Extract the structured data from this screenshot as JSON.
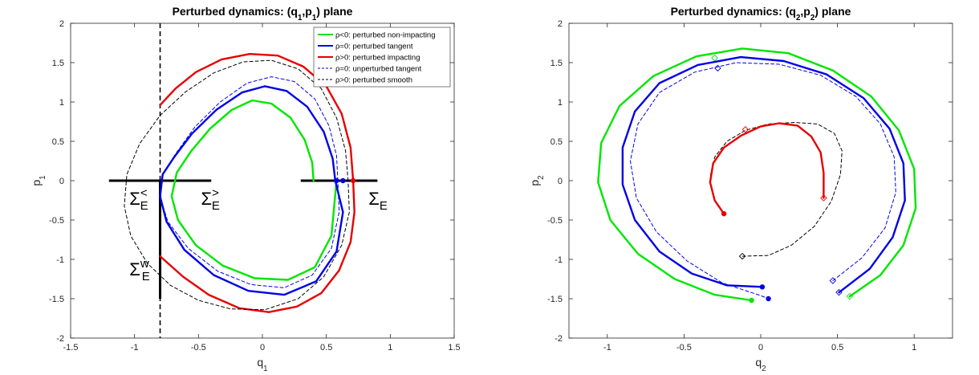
{
  "chart_data": [
    {
      "type": "line",
      "title": "Perturbed dynamics: (q",
      "title_sub1": "1",
      "title_mid": ",p",
      "title_sub2": "1",
      "title_end": ") plane",
      "xlabel": "q",
      "xlabel_sub": "1",
      "ylabel": "p",
      "ylabel_sub": "1",
      "xlim": [
        -1.5,
        1.5
      ],
      "ylim": [
        -2,
        2
      ],
      "xticks": [
        -1.5,
        -1,
        -0.5,
        0,
        0.5,
        1,
        1.5
      ],
      "xtick_labels": [
        "-1.5",
        "-1",
        "-0.5",
        "0",
        "0.5",
        "1",
        "1.5"
      ],
      "yticks": [
        -2,
        -1.5,
        -1,
        -0.5,
        0,
        0.5,
        1,
        1.5,
        2
      ],
      "ytick_labels": [
        "-2",
        "-1.5",
        "-1",
        "-0.5",
        "0",
        "0.5",
        "1",
        "1.5",
        "2"
      ],
      "grid": false,
      "legend_position": "top-right",
      "legend": [
        {
          "label": "ρ<0: perturbed non-impacting",
          "color": "#00e600",
          "style": "solid"
        },
        {
          "label": "ρ=0: perturbed tangent",
          "color": "#0000e6",
          "style": "solid"
        },
        {
          "label": "ρ>0: perturbed impacting",
          "color": "#e60000",
          "style": "solid"
        },
        {
          "label": "ρ=0: unperturbed tangent",
          "color": "#0000e6",
          "style": "dashed"
        },
        {
          "label": "ρ>0: perturbed smooth",
          "color": "#000000",
          "style": "dashed"
        }
      ],
      "annotations": [
        {
          "base": "Σ",
          "sub": "E",
          "sup": "<",
          "x": -1.04,
          "y": -0.12
        },
        {
          "base": "Σ",
          "sub": "E",
          "sup": ">",
          "x": -0.48,
          "y": -0.12
        },
        {
          "base": "Σ",
          "sub": "E",
          "sup": "",
          "x": 0.83,
          "y": -0.12
        },
        {
          "base": "Σ",
          "sub": "E",
          "sup": "w",
          "x": -1.04,
          "y": -1.02
        }
      ],
      "boundaries": {
        "vertical_dashed_q": -0.8,
        "section_left": [
          -1.2,
          -0.4
        ],
        "section_right": [
          0.3,
          0.9
        ],
        "wall_segment": [
          0,
          -1.5
        ]
      },
      "series": [
        {
          "name": "ρ<0: perturbed non-impacting",
          "color": "#00e600",
          "style": "solid",
          "x": [
            0.4,
            0.39,
            0.33,
            0.22,
            0.07,
            -0.08,
            -0.24,
            -0.41,
            -0.56,
            -0.67,
            -0.71,
            -0.66,
            -0.52,
            -0.31,
            -0.06,
            0.2,
            0.41,
            0.54,
            0.58
          ],
          "y": [
            0,
            0.23,
            0.52,
            0.8,
            0.98,
            1.02,
            0.9,
            0.66,
            0.37,
            0.1,
            -0.2,
            -0.5,
            -0.82,
            -1.08,
            -1.24,
            -1.26,
            -1.1,
            -0.7,
            0
          ]
        },
        {
          "name": "ρ=0: perturbed tangent",
          "color": "#0000e6",
          "style": "solid",
          "x": [
            0.57,
            0.55,
            0.48,
            0.35,
            0.19,
            0.02,
            -0.16,
            -0.36,
            -0.55,
            -0.69,
            -0.78,
            -0.8,
            -0.75,
            -0.61,
            -0.38,
            -0.11,
            0.17,
            0.42,
            0.58,
            0.63,
            0.57
          ],
          "y": [
            0,
            0.28,
            0.62,
            0.94,
            1.14,
            1.2,
            1.12,
            0.9,
            0.6,
            0.3,
            0.08,
            -0.2,
            -0.52,
            -0.88,
            -1.2,
            -1.4,
            -1.45,
            -1.28,
            -0.9,
            -0.4,
            0
          ]
        },
        {
          "name": "ρ>0: perturbed impacting (upper)",
          "color": "#e60000",
          "style": "solid",
          "x": [
            -0.8,
            -0.68,
            -0.52,
            -0.32,
            -0.1,
            0.12,
            0.32,
            0.5,
            0.62,
            0.69,
            0.71
          ],
          "y": [
            0.96,
            1.17,
            1.38,
            1.54,
            1.61,
            1.59,
            1.45,
            1.2,
            0.85,
            0.42,
            0
          ]
        },
        {
          "name": "ρ>0: perturbed impacting (lower)",
          "color": "#e60000",
          "style": "solid",
          "x": [
            0.71,
            0.72,
            0.69,
            0.6,
            0.46,
            0.27,
            0.05,
            -0.18,
            -0.42,
            -0.62,
            -0.8
          ],
          "y": [
            0,
            -0.4,
            -0.78,
            -1.14,
            -1.43,
            -1.6,
            -1.67,
            -1.62,
            -1.45,
            -1.22,
            -0.96
          ]
        },
        {
          "name": "ρ=0: unperturbed tangent",
          "color": "#0000e6",
          "style": "dashed",
          "x": [
            0.59,
            0.58,
            0.52,
            0.41,
            0.25,
            0.07,
            -0.12,
            -0.33,
            -0.53,
            -0.68,
            -0.78,
            -0.8,
            -0.74,
            -0.58,
            -0.35,
            -0.09,
            0.17,
            0.39,
            0.54,
            0.6,
            0.59
          ],
          "y": [
            0,
            0.32,
            0.7,
            1.04,
            1.26,
            1.32,
            1.24,
            1.0,
            0.68,
            0.34,
            0.08,
            -0.2,
            -0.52,
            -0.86,
            -1.15,
            -1.32,
            -1.36,
            -1.2,
            -0.86,
            -0.4,
            0
          ]
        },
        {
          "name": "ρ>0: perturbed smooth",
          "color": "#000000",
          "style": "dashed",
          "x": [
            0.67,
            0.65,
            0.58,
            0.46,
            0.28,
            0.07,
            -0.15,
            -0.38,
            -0.6,
            -0.8,
            -0.96,
            -1.06,
            -1.08,
            -1.03,
            -0.9,
            -0.72,
            -0.5,
            -0.25,
            0.02,
            0.28,
            0.48,
            0.62,
            0.68,
            0.67
          ],
          "y": [
            0,
            0.38,
            0.8,
            1.17,
            1.42,
            1.53,
            1.51,
            1.37,
            1.13,
            0.83,
            0.47,
            0.08,
            -0.32,
            -0.7,
            -1.05,
            -1.33,
            -1.52,
            -1.63,
            -1.64,
            -1.5,
            -1.22,
            -0.82,
            -0.4,
            0
          ]
        }
      ],
      "points": [
        {
          "x": 0.58,
          "y": 0,
          "color": "#0000e6"
        },
        {
          "x": 0.63,
          "y": 0,
          "color": "#0000e6"
        },
        {
          "x": 0.71,
          "y": 0,
          "color": "#e60000"
        }
      ]
    },
    {
      "type": "line",
      "title": "Perturbed dynamics: (q",
      "title_sub1": "2",
      "title_mid": ",p",
      "title_sub2": "2",
      "title_end": ") plane",
      "xlabel": "q",
      "xlabel_sub": "2",
      "ylabel": "p",
      "ylabel_sub": "2",
      "xlim": [
        -1.25,
        1.25
      ],
      "ylim": [
        -2,
        2
      ],
      "xticks": [
        -1,
        -0.5,
        0,
        0.5,
        1
      ],
      "xtick_labels": [
        "-1",
        "-0.5",
        "0",
        "0.5",
        "1"
      ],
      "yticks": [
        -2,
        -1.5,
        -1,
        -0.5,
        0,
        0.5,
        1,
        1.5,
        2
      ],
      "ytick_labels": [
        "-2",
        "-1.5",
        "-1",
        "-0.5",
        "0",
        "0.5",
        "1",
        "1.5",
        "2"
      ],
      "grid": false,
      "series": [
        {
          "name": "green",
          "color": "#00e600",
          "style": "solid",
          "x": [
            0.58,
            0.78,
            0.93,
            1.01,
            1.0,
            0.9,
            0.72,
            0.47,
            0.18,
            -0.12,
            -0.42,
            -0.7,
            -0.92,
            -1.04,
            -1.06,
            -0.98,
            -0.8,
            -0.56,
            -0.3,
            -0.06
          ],
          "y": [
            -1.47,
            -1.2,
            -0.82,
            -0.35,
            0.15,
            0.64,
            1.07,
            1.4,
            1.62,
            1.68,
            1.58,
            1.33,
            0.95,
            0.48,
            -0.02,
            -0.5,
            -0.93,
            -1.25,
            -1.45,
            -1.52
          ]
        },
        {
          "name": "blue",
          "color": "#0000e6",
          "style": "solid",
          "x": [
            0.51,
            0.71,
            0.86,
            0.94,
            0.93,
            0.84,
            0.67,
            0.43,
            0.15,
            -0.13,
            -0.41,
            -0.66,
            -0.82,
            -0.9,
            -0.9,
            -0.82,
            -0.66,
            -0.45,
            -0.22,
            0.01
          ],
          "y": [
            -1.42,
            -1.12,
            -0.72,
            -0.25,
            0.22,
            0.66,
            1.05,
            1.35,
            1.52,
            1.57,
            1.47,
            1.24,
            0.88,
            0.42,
            -0.05,
            -0.5,
            -0.9,
            -1.18,
            -1.33,
            -1.35
          ]
        },
        {
          "name": "blue dashed",
          "color": "#0000e6",
          "style": "dashed",
          "x": [
            0.47,
            0.66,
            0.81,
            0.88,
            0.87,
            0.78,
            0.62,
            0.39,
            0.12,
            -0.16,
            -0.43,
            -0.66,
            -0.8,
            -0.85,
            -0.81,
            -0.68,
            -0.48,
            -0.25,
            0.0,
            0.05
          ],
          "y": [
            -1.27,
            -0.98,
            -0.6,
            -0.15,
            0.3,
            0.72,
            1.07,
            1.34,
            1.48,
            1.5,
            1.38,
            1.12,
            0.72,
            0.25,
            -0.22,
            -0.65,
            -1.02,
            -1.3,
            -1.46,
            -1.5
          ]
        },
        {
          "name": "black dashed",
          "color": "#000000",
          "style": "dashed",
          "x": [
            -0.12,
            0.05,
            0.2,
            0.35,
            0.46,
            0.52,
            0.53,
            0.48,
            0.37,
            0.22,
            0.05,
            -0.1,
            -0.22,
            -0.3,
            -0.33
          ],
          "y": [
            -0.96,
            -0.95,
            -0.82,
            -0.58,
            -0.26,
            0.08,
            0.38,
            0.6,
            0.72,
            0.74,
            0.72,
            0.64,
            0.5,
            0.3,
            0.05
          ]
        },
        {
          "name": "red",
          "color": "#e60000",
          "style": "solid",
          "x": [
            -0.24,
            -0.3,
            -0.33,
            -0.31,
            -0.24,
            -0.13,
            0.0,
            0.12,
            0.24,
            0.33,
            0.39,
            0.41,
            0.41
          ],
          "y": [
            -0.42,
            -0.25,
            -0.02,
            0.22,
            0.42,
            0.57,
            0.69,
            0.73,
            0.7,
            0.56,
            0.36,
            0.1,
            -0.22
          ]
        }
      ],
      "points": [
        {
          "x": 0.01,
          "y": -1.35,
          "color": "#0000e6"
        },
        {
          "x": -0.06,
          "y": -1.52,
          "color": "#00e600"
        },
        {
          "x": 0.05,
          "y": -1.5,
          "color": "#0000e6"
        },
        {
          "x": -0.24,
          "y": -0.42,
          "color": "#e60000"
        }
      ],
      "diamonds": [
        {
          "x": 0.58,
          "y": -1.47,
          "color": "#00e600"
        },
        {
          "x": 0.51,
          "y": -1.42,
          "color": "#0000e6"
        },
        {
          "x": 0.47,
          "y": -1.27,
          "color": "#0000e6"
        },
        {
          "x": -0.12,
          "y": -0.96,
          "color": "#000000"
        },
        {
          "x": 0.41,
          "y": -0.22,
          "color": "#e60000"
        },
        {
          "x": -0.1,
          "y": 0.65,
          "color": "#e60000"
        },
        {
          "x": -0.28,
          "y": 1.43,
          "color": "#0000e6"
        },
        {
          "x": -0.3,
          "y": 1.56,
          "color": "#00e600"
        }
      ]
    }
  ]
}
